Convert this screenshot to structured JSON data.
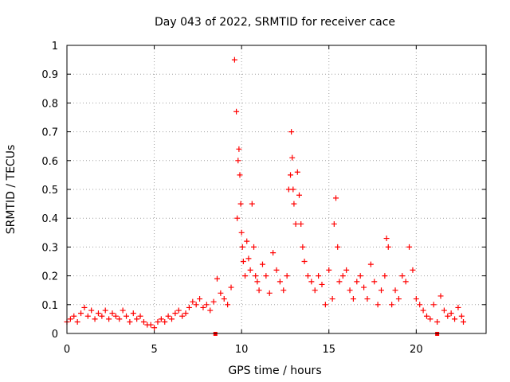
{
  "chart_data": {
    "type": "scatter",
    "title": "Day 043 of 2022, SRMTID for receiver cace",
    "xlabel": "GPS time / hours",
    "ylabel": "SRMTID / TECUs",
    "xlim": [
      0,
      24
    ],
    "ylim": [
      0,
      1
    ],
    "xticks": [
      0,
      5,
      10,
      15,
      20
    ],
    "xtick_labels": [
      "0",
      "5",
      "10",
      "15",
      "20"
    ],
    "yticks": [
      0,
      0.1,
      0.2,
      0.3,
      0.4,
      0.5,
      0.6,
      0.7,
      0.8,
      0.9,
      1
    ],
    "ytick_labels": [
      "0",
      "0.1",
      "0.2",
      "0.3",
      "0.4",
      "0.5",
      "0.6",
      "0.7",
      "0.8",
      "0.9",
      "1"
    ],
    "grid": true,
    "series_color": "#ff0000",
    "marker": "plus",
    "gap_markers_x": [
      8.5,
      21.2
    ],
    "series": [
      {
        "name": "SRMTID",
        "x": [
          0.0,
          0.2,
          0.4,
          0.6,
          0.8,
          1.0,
          1.2,
          1.4,
          1.6,
          1.8,
          2.0,
          2.2,
          2.4,
          2.6,
          2.8,
          3.0,
          3.2,
          3.4,
          3.6,
          3.8,
          4.0,
          4.2,
          4.4,
          4.6,
          4.8,
          5.0,
          5.2,
          5.4,
          5.6,
          5.8,
          6.0,
          6.2,
          6.4,
          6.6,
          6.8,
          7.0,
          7.2,
          7.4,
          7.6,
          7.8,
          8.0,
          8.2,
          8.4,
          8.6,
          8.8,
          9.0,
          9.2,
          9.4,
          9.6,
          9.7,
          9.75,
          9.8,
          9.85,
          9.9,
          9.95,
          10.0,
          10.05,
          10.1,
          10.2,
          10.3,
          10.4,
          10.5,
          10.6,
          10.7,
          10.8,
          10.9,
          11.0,
          11.2,
          11.4,
          11.6,
          11.8,
          12.0,
          12.2,
          12.4,
          12.6,
          12.7,
          12.8,
          12.85,
          12.9,
          12.95,
          13.0,
          13.1,
          13.2,
          13.3,
          13.4,
          13.5,
          13.6,
          13.8,
          14.0,
          14.2,
          14.4,
          14.6,
          14.8,
          15.0,
          15.2,
          15.3,
          15.4,
          15.5,
          15.6,
          15.8,
          16.0,
          16.2,
          16.4,
          16.6,
          16.8,
          17.0,
          17.2,
          17.4,
          17.6,
          17.8,
          18.0,
          18.2,
          18.3,
          18.4,
          18.6,
          18.8,
          19.0,
          19.2,
          19.4,
          19.6,
          19.8,
          20.0,
          20.2,
          20.4,
          20.6,
          20.8,
          21.0,
          21.2,
          21.4,
          21.6,
          21.8,
          22.0,
          22.2,
          22.4,
          22.6,
          22.7
        ],
        "y": [
          0.04,
          0.05,
          0.06,
          0.04,
          0.07,
          0.09,
          0.06,
          0.08,
          0.05,
          0.07,
          0.06,
          0.08,
          0.05,
          0.07,
          0.06,
          0.05,
          0.08,
          0.06,
          0.04,
          0.07,
          0.05,
          0.06,
          0.04,
          0.03,
          0.03,
          0.02,
          0.04,
          0.05,
          0.04,
          0.06,
          0.05,
          0.07,
          0.08,
          0.06,
          0.07,
          0.09,
          0.11,
          0.1,
          0.12,
          0.09,
          0.1,
          0.08,
          0.11,
          0.19,
          0.14,
          0.12,
          0.1,
          0.16,
          0.95,
          0.77,
          0.4,
          0.6,
          0.64,
          0.55,
          0.45,
          0.35,
          0.3,
          0.25,
          0.2,
          0.32,
          0.26,
          0.22,
          0.45,
          0.3,
          0.2,
          0.18,
          0.15,
          0.24,
          0.2,
          0.14,
          0.28,
          0.22,
          0.18,
          0.15,
          0.2,
          0.5,
          0.55,
          0.7,
          0.61,
          0.5,
          0.45,
          0.38,
          0.56,
          0.48,
          0.38,
          0.3,
          0.25,
          0.2,
          0.18,
          0.15,
          0.2,
          0.17,
          0.1,
          0.22,
          0.12,
          0.38,
          0.47,
          0.3,
          0.18,
          0.2,
          0.22,
          0.15,
          0.12,
          0.18,
          0.2,
          0.16,
          0.12,
          0.24,
          0.18,
          0.1,
          0.15,
          0.2,
          0.33,
          0.3,
          0.1,
          0.15,
          0.12,
          0.2,
          0.18,
          0.3,
          0.22,
          0.12,
          0.1,
          0.08,
          0.06,
          0.05,
          0.1,
          0.04,
          0.13,
          0.08,
          0.06,
          0.07,
          0.05,
          0.09,
          0.06,
          0.04
        ]
      }
    ]
  }
}
